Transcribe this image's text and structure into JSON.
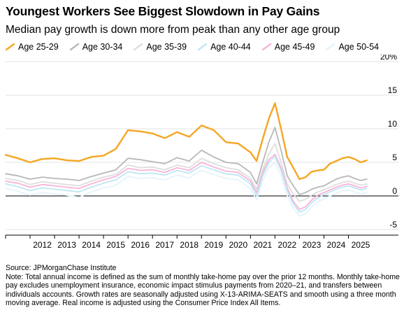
{
  "chart_data": {
    "type": "line",
    "title": "Youngest Workers See Biggest Slowdown in Pay Gains",
    "subtitle": "Median pay growth is down more from peak than any other age group",
    "xlabel": "",
    "ylabel": "",
    "x_range": [
      2011.0,
      2025.9
    ],
    "ylim": [
      -5,
      20
    ],
    "y_ticks": [
      -5,
      0,
      5,
      10,
      15,
      20
    ],
    "y_tick_labels": [
      "-5",
      "0",
      "5",
      "10",
      "15",
      "20%"
    ],
    "x_ticks": [
      "2012",
      "2013",
      "2014",
      "2015",
      "2016",
      "2017",
      "2018",
      "2019",
      "2020",
      "2021",
      "2022",
      "2023",
      "2024",
      "2025"
    ],
    "grid": "horizontal",
    "legend_position": "top",
    "x": [
      2011.0,
      2011.5,
      2012.0,
      2012.5,
      2013.0,
      2013.5,
      2014.0,
      2014.5,
      2015.0,
      2015.5,
      2016.0,
      2016.5,
      2017.0,
      2017.5,
      2018.0,
      2018.5,
      2019.0,
      2019.5,
      2020.0,
      2020.5,
      2021.0,
      2021.25,
      2021.5,
      2021.75,
      2022.0,
      2022.25,
      2022.5,
      2022.75,
      2023.0,
      2023.25,
      2023.5,
      2023.75,
      2024.0,
      2024.25,
      2024.5,
      2024.75,
      2025.0,
      2025.25,
      2025.5,
      2025.75
    ],
    "series": [
      {
        "name": "Age 25-29",
        "color": "#f5a623",
        "values": [
          6.1,
          5.6,
          5.0,
          5.5,
          5.6,
          5.3,
          5.2,
          5.8,
          6.0,
          7.0,
          9.8,
          9.6,
          9.3,
          8.6,
          9.5,
          8.8,
          10.5,
          9.8,
          8.0,
          7.8,
          6.5,
          5.2,
          8.5,
          11.5,
          13.8,
          10.0,
          5.8,
          4.2,
          2.5,
          2.8,
          3.6,
          3.8,
          3.9,
          4.8,
          5.2,
          5.6,
          5.8,
          5.5,
          5.0,
          5.3
        ]
      },
      {
        "name": "Age 30-34",
        "color": "#b8b8b8",
        "values": [
          3.3,
          3.0,
          2.5,
          2.8,
          2.6,
          2.5,
          2.3,
          2.9,
          3.4,
          3.9,
          5.6,
          5.4,
          5.1,
          4.8,
          5.7,
          5.2,
          6.8,
          5.8,
          5.0,
          4.8,
          3.5,
          1.8,
          5.0,
          8.0,
          10.2,
          6.8,
          3.0,
          1.5,
          0.2,
          0.5,
          1.0,
          1.3,
          1.5,
          2.0,
          2.5,
          2.8,
          3.0,
          2.6,
          2.3,
          2.5
        ]
      },
      {
        "name": "Age 35-39",
        "color": "#dedede",
        "values": [
          2.6,
          2.3,
          1.7,
          2.1,
          1.9,
          1.7,
          1.5,
          2.2,
          2.8,
          3.2,
          4.6,
          4.2,
          4.3,
          3.9,
          4.6,
          4.2,
          5.6,
          4.8,
          4.2,
          3.9,
          2.6,
          1.0,
          4.0,
          6.2,
          7.8,
          5.0,
          1.8,
          0.3,
          -0.8,
          -0.5,
          0.1,
          0.6,
          0.9,
          1.3,
          1.7,
          2.0,
          2.2,
          1.9,
          1.6,
          1.8
        ]
      },
      {
        "name": "Age 40-44",
        "color": "#bde7f5",
        "values": [
          1.8,
          1.4,
          0.8,
          1.2,
          1.0,
          0.8,
          0.6,
          1.3,
          1.9,
          2.4,
          3.6,
          3.3,
          3.4,
          3.1,
          3.8,
          3.4,
          4.5,
          3.9,
          3.3,
          3.1,
          1.8,
          0.0,
          3.0,
          5.0,
          5.9,
          3.8,
          0.8,
          -1.2,
          -2.4,
          -2.0,
          -1.0,
          -0.3,
          0.2,
          0.6,
          1.0,
          1.3,
          1.5,
          1.2,
          0.9,
          1.1
        ]
      },
      {
        "name": "Age 45-49",
        "color": "#f8b3d8",
        "values": [
          2.2,
          1.9,
          1.3,
          1.7,
          1.5,
          1.3,
          1.1,
          1.8,
          2.4,
          2.9,
          4.1,
          3.8,
          3.9,
          3.5,
          4.2,
          3.8,
          5.0,
          4.3,
          3.7,
          3.5,
          2.2,
          0.5,
          3.5,
          5.4,
          6.2,
          4.2,
          1.2,
          -0.8,
          -2.0,
          -1.6,
          -0.6,
          0.1,
          0.5,
          0.9,
          1.3,
          1.6,
          1.8,
          1.5,
          1.2,
          1.4
        ]
      },
      {
        "name": "Age 50-54",
        "color": "#e4f3fb",
        "values": [
          1.1,
          0.7,
          0.1,
          0.5,
          0.3,
          0.1,
          -0.2,
          0.6,
          1.2,
          1.6,
          2.9,
          2.6,
          2.7,
          2.4,
          3.1,
          2.7,
          3.8,
          3.2,
          2.6,
          2.4,
          1.1,
          -0.6,
          2.3,
          4.2,
          5.0,
          3.0,
          0.0,
          -1.8,
          -3.0,
          -2.6,
          -1.6,
          -0.9,
          -0.4,
          0.0,
          0.4,
          0.7,
          0.9,
          0.6,
          0.3,
          0.5
        ]
      }
    ]
  },
  "footer": {
    "source": "Source: JPMorganChase Institute",
    "note": "Note: Total annual income is defined as the sum of monthly take-home pay over the prior 12 months. Monthly take-home pay excludes unemployment insurance, economic impact stimulus payments from 2020–21, and transfers between individuals accounts. Growth rates are seasonally adjusted using X-13-ARIMA-SEATS and smooth using a three month moving average. Real income is adjusted using the Consumer Price Index All Items."
  }
}
